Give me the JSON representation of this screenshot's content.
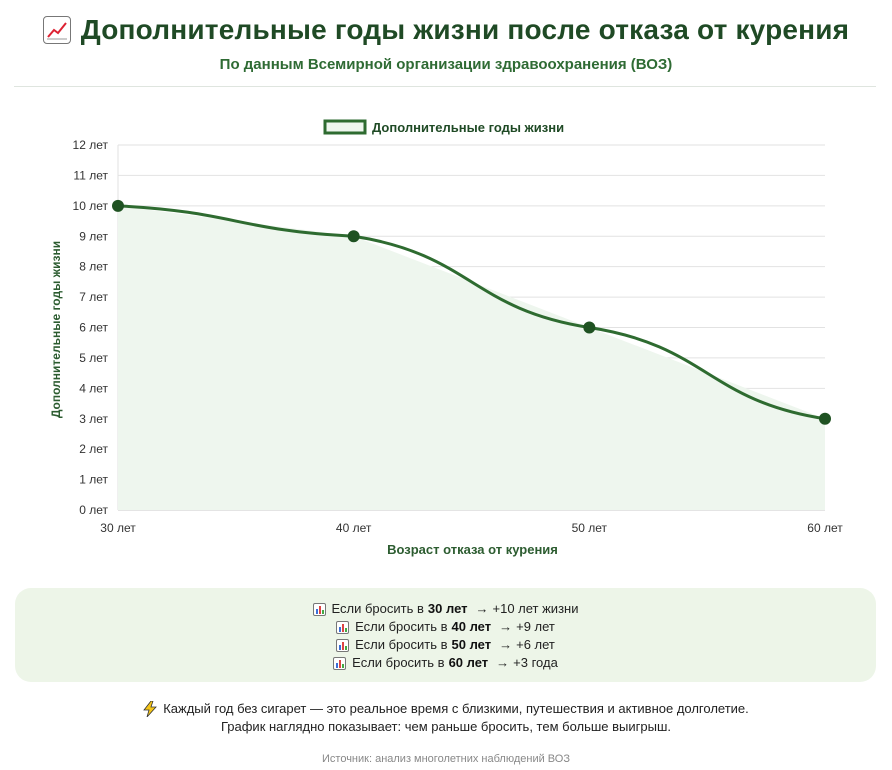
{
  "header": {
    "title_icon": "chart-increasing-icon",
    "title": "Дополнительные годы жизни после отказа от курения",
    "subtitle": "По данным Всемирной организации здравоохранения (ВОЗ)"
  },
  "chart_data": {
    "type": "line",
    "categories": [
      "30 лет",
      "40 лет",
      "50 лет",
      "60 лет"
    ],
    "series": [
      {
        "name": "Дополнительные годы жизни",
        "values": [
          10,
          9,
          6,
          3
        ],
        "color": "#2e6b30",
        "fill": "#eef6ee",
        "point_color": "#1f5222"
      }
    ],
    "xlabel": "Возраст отказа от курения",
    "ylabel": "Дополнительные годы жизни",
    "ylim": [
      0,
      12
    ],
    "yticks": [
      0,
      1,
      2,
      3,
      4,
      5,
      6,
      7,
      8,
      9,
      10,
      11,
      12
    ],
    "ytick_suffix": " лет",
    "grid": true,
    "legend_position": "top-center"
  },
  "info": {
    "icon": "bar-chart-icon",
    "lines": [
      {
        "prefix": "Если бросить в",
        "age": "30 лет",
        "arrow": "→",
        "result": "+10 лет жизни"
      },
      {
        "prefix": "Если бросить в",
        "age": "40 лет",
        "arrow": "→",
        "result": "+9 лет"
      },
      {
        "prefix": "Если бросить в",
        "age": "50 лет",
        "arrow": "→",
        "result": "+6 лет"
      },
      {
        "prefix": "Если бросить в",
        "age": "60 лет",
        "arrow": "→",
        "result": "+3 года"
      }
    ]
  },
  "note": {
    "icon": "lightning-icon",
    "line1": "Каждый год без сигарет — это реальное время с близкими, путешествия и активное долголетие.",
    "line2": "График наглядно показывает: чем раньше бросить, тем больше выигрыш."
  },
  "source": "Источник: анализ многолетних наблюдений ВОЗ"
}
